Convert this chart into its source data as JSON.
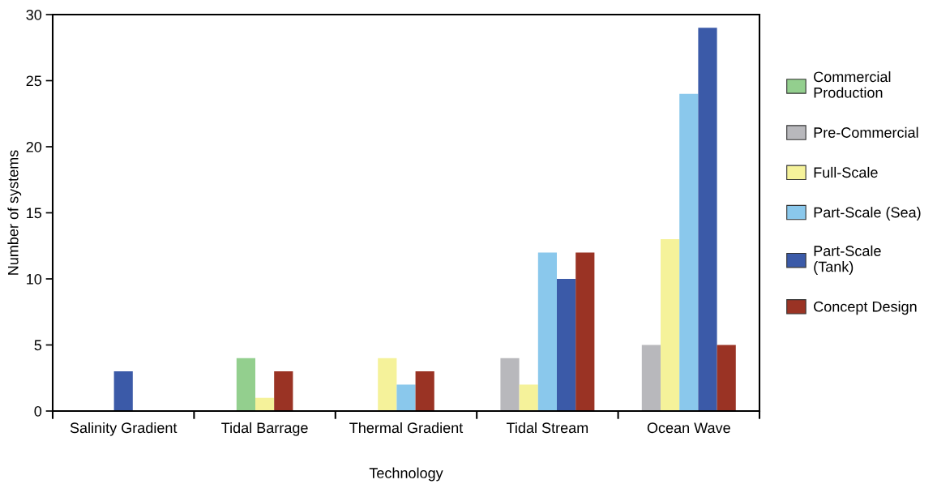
{
  "chart_data": {
    "type": "bar",
    "xlabel": "Technology",
    "ylabel": "Number of systems",
    "categories": [
      "Salinity Gradient",
      "Tidal Barrage",
      "Thermal Gradient",
      "Tidal Stream",
      "Ocean Wave"
    ],
    "series": [
      {
        "name": "Commercial Production",
        "color": "#93cf8e",
        "values": [
          null,
          4,
          null,
          null,
          null
        ]
      },
      {
        "name": "Pre-Commercial",
        "color": "#b8b8bc",
        "values": [
          null,
          null,
          null,
          4,
          5
        ]
      },
      {
        "name": "Full-Scale",
        "color": "#f5f29a",
        "values": [
          null,
          1,
          4,
          2,
          13
        ]
      },
      {
        "name": "Part-Scale (Sea)",
        "color": "#8ac8ec",
        "values": [
          null,
          null,
          2,
          12,
          24
        ]
      },
      {
        "name": "Part-Scale (Tank)",
        "color": "#3b5aa8",
        "values": [
          3,
          null,
          null,
          10,
          29
        ]
      },
      {
        "name": "Concept Design",
        "color": "#9a3324",
        "values": [
          null,
          3,
          3,
          12,
          5
        ]
      }
    ],
    "ylim": [
      0,
      30
    ],
    "yticks": [
      0,
      5,
      10,
      15,
      20,
      25,
      30
    ],
    "grid": false,
    "legend": "right"
  }
}
